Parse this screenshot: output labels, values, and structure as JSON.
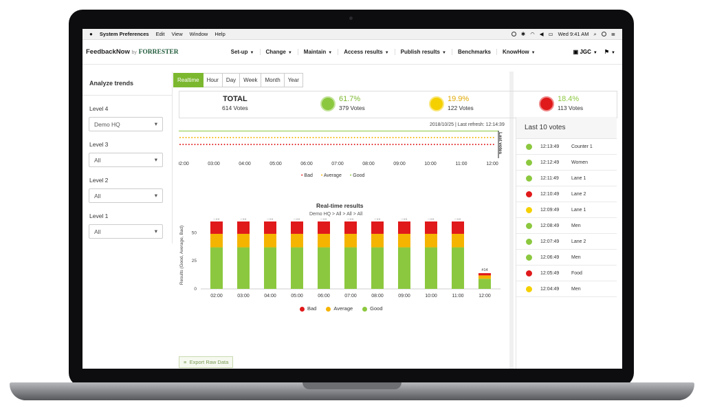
{
  "menubar": {
    "app_name": "System Preferences",
    "items": [
      "Edit",
      "View",
      "Window",
      "Help"
    ],
    "clock": "Wed 9:41 AM"
  },
  "navbar": {
    "logo_main": "FeedbackNow",
    "logo_by": "by",
    "logo_brand": "FORRESTER",
    "items": [
      {
        "label": "Set-up",
        "dropdown": true
      },
      {
        "label": "Change",
        "dropdown": true
      },
      {
        "label": "Maintain",
        "dropdown": true
      },
      {
        "label": "Access results",
        "dropdown": true
      },
      {
        "label": "Publish results",
        "dropdown": true
      },
      {
        "label": "Benchmarks",
        "dropdown": false
      },
      {
        "label": "KnowHow",
        "dropdown": true
      }
    ],
    "user": "JGC"
  },
  "sidebar": {
    "title": "Analyze trends",
    "levels": [
      {
        "label": "Level 4",
        "value": "Demo HQ"
      },
      {
        "label": "Level 3",
        "value": "All"
      },
      {
        "label": "Level 2",
        "value": "All"
      },
      {
        "label": "Level 1",
        "value": "All"
      }
    ]
  },
  "tabs": {
    "items": [
      "Realtime",
      "Hour",
      "Day",
      "Week",
      "Month",
      "Year"
    ],
    "active": "Realtime"
  },
  "summary": {
    "total_label": "TOTAL",
    "total_votes": "614 Votes",
    "good_pct": "61.7%",
    "good_votes": "379 Votes",
    "avg_pct": "19.9%",
    "avg_votes": "122 Votes",
    "bad_pct": "18.4%",
    "bad_votes": "113 Votes"
  },
  "timeline": {
    "refresh": "2018/10/25 | Last refresh: 12:14:39",
    "side_label": "Last votes",
    "ticks": [
      "02:00",
      "03:00",
      "04:00",
      "05:00",
      "06:00",
      "07:00",
      "08:00",
      "09:00",
      "10:00",
      "11:00",
      "12:00"
    ],
    "legend": [
      "Bad",
      "Average",
      "Good"
    ]
  },
  "colors": {
    "good": "#8cc83f",
    "average": "#f5b400",
    "bad": "#e0191a",
    "accent": "#7cb82f"
  },
  "chart_data": {
    "type": "bar",
    "title": "Real-time results",
    "subtitle": "Demo HQ > All > All > All",
    "ylabel": "Results (Good, Average, Bad)",
    "ylim": [
      0,
      60
    ],
    "yticks": [
      0,
      25,
      50
    ],
    "categories": [
      "02:00",
      "03:00",
      "04:00",
      "05:00",
      "06:00",
      "07:00",
      "08:00",
      "09:00",
      "10:00",
      "11:00",
      "12:00"
    ],
    "totals": [
      "#60",
      "#60",
      "#60",
      "#60",
      "#60",
      "#60",
      "#60",
      "#60",
      "#60",
      "#60",
      "#14"
    ],
    "series": [
      {
        "name": "Good",
        "values": [
          37,
          37,
          37,
          37,
          37,
          37,
          37,
          37,
          37,
          37,
          9
        ]
      },
      {
        "name": "Average",
        "values": [
          12,
          12,
          12,
          12,
          12,
          12,
          12,
          12,
          12,
          12,
          3
        ]
      },
      {
        "name": "Bad",
        "values": [
          11,
          11,
          11,
          11,
          11,
          11,
          11,
          11,
          11,
          11,
          2
        ]
      }
    ],
    "legend": [
      "Bad",
      "Average",
      "Good"
    ]
  },
  "export_label": "Export Raw Data",
  "last_votes": {
    "title": "Last 10 votes",
    "items": [
      {
        "time": "12:13:49",
        "label": "Counter 1",
        "mood": "good"
      },
      {
        "time": "12:12:49",
        "label": "Women",
        "mood": "good"
      },
      {
        "time": "12:11:49",
        "label": "Lane 1",
        "mood": "good"
      },
      {
        "time": "12:10:49",
        "label": "Lane 2",
        "mood": "bad"
      },
      {
        "time": "12:09:49",
        "label": "Lane 1",
        "mood": "average"
      },
      {
        "time": "12:08:49",
        "label": "Men",
        "mood": "good"
      },
      {
        "time": "12:07:49",
        "label": "Lane 2",
        "mood": "good"
      },
      {
        "time": "12:06:49",
        "label": "Men",
        "mood": "good"
      },
      {
        "time": "12:05:49",
        "label": "Food",
        "mood": "bad"
      },
      {
        "time": "12:04:49",
        "label": "Men",
        "mood": "average"
      }
    ]
  }
}
